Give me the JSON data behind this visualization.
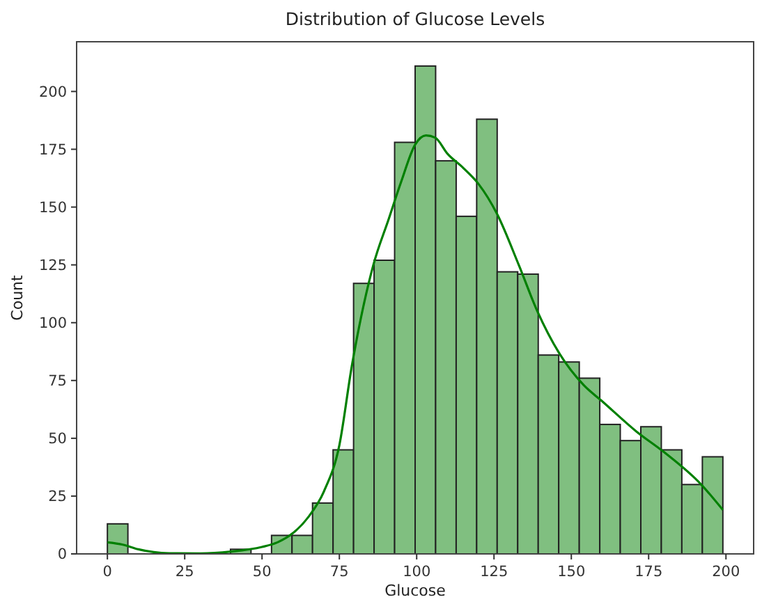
{
  "chart_data": {
    "type": "histogram",
    "title": "Distribution of Glucose Levels",
    "xlabel": "Glucose",
    "ylabel": "Count",
    "xlim": [
      -9.95,
      208.95
    ],
    "ylim": [
      0,
      221.5
    ],
    "xticks": [
      0,
      25,
      50,
      75,
      100,
      125,
      150,
      175,
      200
    ],
    "yticks": [
      0,
      25,
      50,
      75,
      100,
      125,
      150,
      175,
      200
    ],
    "grid": false,
    "series": [
      {
        "color": "#80bf80",
        "bins": [
          0,
          6.63,
          13.27,
          19.9,
          26.53,
          33.17,
          39.8,
          46.43,
          53.07,
          59.7,
          66.33,
          72.97,
          79.6,
          86.23,
          92.87,
          99.5,
          106.13,
          112.77,
          119.4,
          126.03,
          132.67,
          139.3,
          145.93,
          152.57,
          159.2,
          165.83,
          172.47,
          179.1,
          185.73,
          192.37,
          199
        ],
        "values": [
          13,
          0,
          0,
          0,
          0,
          0,
          2,
          0,
          8,
          8,
          22,
          45,
          117,
          127,
          178,
          211,
          170,
          146,
          188,
          122,
          121,
          86,
          83,
          76,
          56,
          49,
          55,
          45,
          30,
          42
        ]
      },
      {
        "type": "line",
        "color": "#008000",
        "x": [
          0,
          5,
          10,
          20,
          30,
          40,
          50,
          55,
          60,
          65,
          70,
          75,
          79,
          86,
          91,
          95,
          99.5,
          103,
          106,
          110,
          115,
          120,
          126,
          133,
          139,
          146,
          154,
          160,
          171,
          180,
          192,
          199
        ],
        "values": [
          5,
          4,
          2,
          0.3,
          0.2,
          1,
          3,
          5,
          9,
          16,
          27,
          47,
          81,
          125,
          145,
          161,
          177,
          181,
          180,
          173,
          167,
          160,
          147,
          125,
          105,
          87,
          73,
          66,
          53,
          44,
          30,
          19
        ]
      }
    ]
  }
}
